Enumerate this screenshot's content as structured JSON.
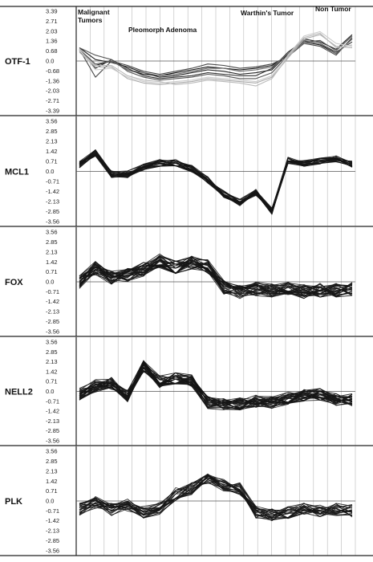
{
  "chart_data": [
    {
      "type": "line",
      "name": "OTF-1",
      "yticks": [
        "3.39",
        "2.71",
        "2.03",
        "1.36",
        "0.68",
        "0.0",
        "-0.68",
        "-1.36",
        "-2.03",
        "-2.71",
        "-3.39"
      ],
      "ylim": [
        -3.39,
        3.39
      ],
      "group_labels": [
        "Malignant\nTumors",
        "Pleomorph Adenoma",
        "Warthin's Tumor",
        "Non Tumor"
      ],
      "series_colors": [
        "#111111",
        "#222222",
        "#333333",
        "#444444",
        "#555555",
        "#666666",
        "#aaaaaa",
        "#bbbbbb",
        "#cccccc"
      ],
      "series": [
        {
          "values": [
            0.8,
            -0.3,
            0.0,
            -0.6,
            -0.9,
            -1.0,
            -0.8,
            -0.6,
            -0.4,
            -0.5,
            -0.6,
            -0.5,
            -0.3,
            0.4,
            1.3,
            1.1,
            0.5,
            1.5
          ]
        },
        {
          "values": [
            0.9,
            0.1,
            -0.1,
            -0.4,
            -0.8,
            -1.1,
            -1.0,
            -0.8,
            -0.6,
            -0.7,
            -0.9,
            -0.8,
            -0.6,
            0.5,
            1.5,
            1.3,
            0.8,
            1.8
          ]
        },
        {
          "values": [
            0.7,
            -0.5,
            0.1,
            -0.5,
            -1.0,
            -1.2,
            -1.1,
            -1.0,
            -0.8,
            -0.9,
            -1.0,
            -1.0,
            -0.5,
            0.6,
            1.4,
            1.2,
            0.6,
            1.3
          ]
        },
        {
          "values": [
            0.8,
            -1.1,
            0.0,
            -0.3,
            -0.7,
            -0.9,
            -0.7,
            -0.5,
            -0.2,
            -0.3,
            -0.5,
            -0.4,
            -0.2,
            0.3,
            1.2,
            1.0,
            0.4,
            1.6
          ]
        },
        {
          "values": [
            0.9,
            0.4,
            0.1,
            -0.7,
            -1.1,
            -1.3,
            -1.2,
            -1.1,
            -0.9,
            -1.0,
            -1.2,
            -1.2,
            -0.8,
            0.4,
            1.3,
            1.4,
            0.7,
            1.7
          ]
        },
        {
          "values": [
            0.8,
            -0.2,
            0.0,
            -0.6,
            -0.8,
            -1.0,
            -0.9,
            -0.7,
            -0.5,
            -0.5,
            -0.7,
            -0.6,
            -0.4,
            0.5,
            1.4,
            1.2,
            0.5,
            1.5
          ]
        },
        {
          "values": [
            0.6,
            -0.4,
            -0.4,
            -1.2,
            -1.5,
            -1.6,
            -1.5,
            -1.4,
            -1.2,
            -1.3,
            -1.4,
            -1.5,
            -1.1,
            0.2,
            1.5,
            1.8,
            1.0,
            0.9
          ]
        },
        {
          "values": [
            0.7,
            -0.3,
            -0.3,
            -1.0,
            -1.3,
            -1.4,
            -1.6,
            -1.5,
            -1.3,
            -1.4,
            -1.5,
            -1.7,
            -1.2,
            0.3,
            1.6,
            1.9,
            0.9,
            1.1
          ]
        },
        {
          "values": [
            0.8,
            -0.6,
            -0.5,
            -1.1,
            -1.4,
            -1.5,
            -1.4,
            -1.3,
            -1.1,
            -1.2,
            -1.3,
            -1.4,
            -1.0,
            0.4,
            1.7,
            2.0,
            1.2,
            1.0
          ]
        }
      ]
    },
    {
      "type": "line",
      "name": "MCL1",
      "yticks": [
        "3.56",
        "2.85",
        "2.13",
        "1.42",
        "0.71",
        "0.0",
        "-0.71",
        "-1.42",
        "-2.13",
        "-2.85",
        "-3.56"
      ],
      "ylim": [
        -3.56,
        3.56
      ],
      "profile": [
        0.5,
        1.3,
        -0.2,
        -0.2,
        0.3,
        0.6,
        0.6,
        0.2,
        -0.6,
        -1.6,
        -2.2,
        -1.5,
        -2.8,
        0.8,
        0.6,
        0.7,
        0.9,
        0.5
      ],
      "n_lines": 22,
      "spread": 0.25
    },
    {
      "type": "line",
      "name": "FOX",
      "yticks": [
        "3.56",
        "2.85",
        "2.13",
        "1.42",
        "0.71",
        "0.0",
        "-0.71",
        "-1.42",
        "-2.13",
        "-2.85",
        "-3.56"
      ],
      "ylim": [
        -3.56,
        3.56
      ],
      "profile": [
        0.0,
        1.0,
        0.3,
        0.5,
        0.9,
        1.5,
        1.0,
        1.4,
        1.1,
        -0.4,
        -0.7,
        -0.5,
        -0.6,
        -0.5,
        -0.7,
        -0.6,
        -0.6,
        -0.5
      ],
      "n_lines": 30,
      "spread": 0.5
    },
    {
      "type": "line",
      "name": "NELL2",
      "yticks": [
        "3.56",
        "2.85",
        "2.13",
        "1.42",
        "0.71",
        "0.0",
        "-0.71",
        "-1.42",
        "-2.13",
        "-2.85",
        "-3.56"
      ],
      "ylim": [
        -3.56,
        3.56
      ],
      "profile": [
        -0.2,
        0.4,
        0.6,
        -0.3,
        1.8,
        0.7,
        0.9,
        0.8,
        -0.8,
        -0.9,
        -0.9,
        -0.7,
        -0.8,
        -0.5,
        -0.3,
        -0.2,
        -0.6,
        -0.6
      ],
      "n_lines": 30,
      "spread": 0.45
    },
    {
      "type": "line",
      "name": "PLK",
      "yticks": [
        "3.56",
        "2.85",
        "2.13",
        "1.42",
        "0.71",
        "0.0",
        "-0.71",
        "-1.42",
        "-2.13",
        "-2.85",
        "-3.56"
      ],
      "ylim": [
        -3.56,
        3.56
      ],
      "profile": [
        -0.6,
        -0.1,
        -0.6,
        -0.3,
        -0.8,
        -0.5,
        0.5,
        0.9,
        1.6,
        1.1,
        0.9,
        -0.8,
        -1.0,
        -0.8,
        -0.6,
        -0.7,
        -0.6,
        -0.7
      ],
      "n_lines": 22,
      "spread": 0.45
    }
  ]
}
